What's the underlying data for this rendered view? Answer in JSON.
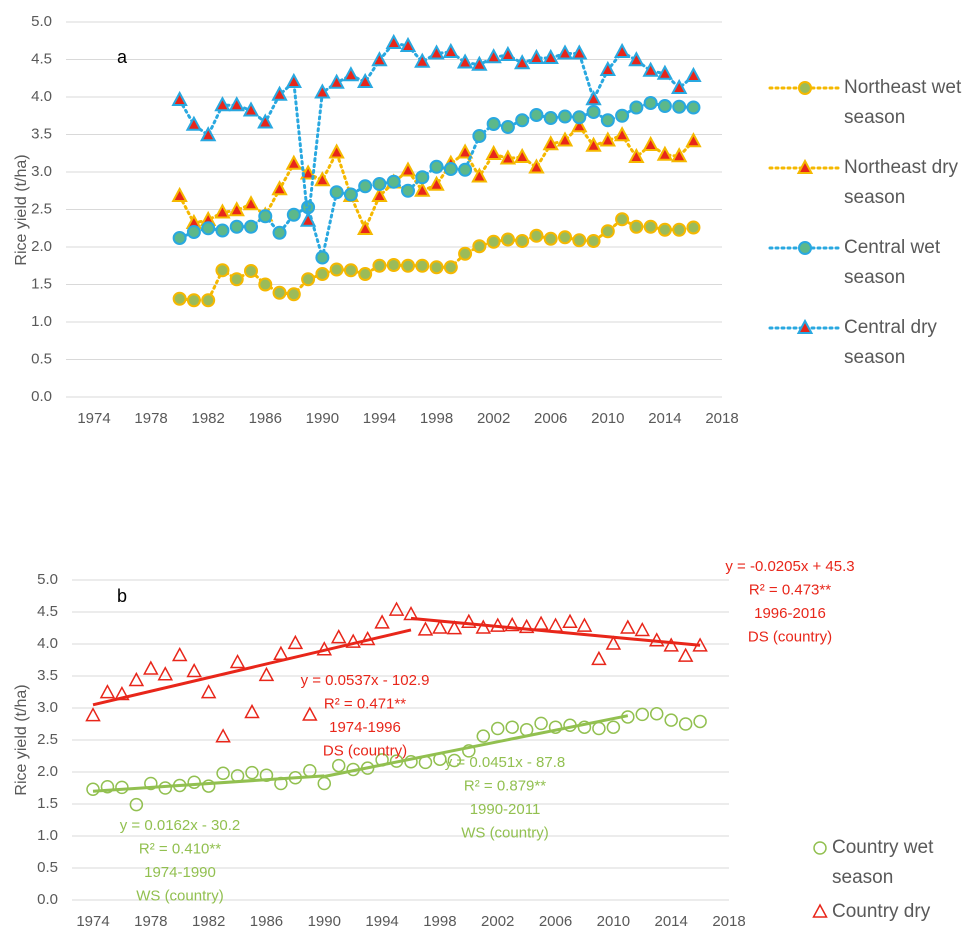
{
  "chart_data": [
    {
      "type": "line",
      "label": "a",
      "y_label": "Rice yield (t/ha)",
      "x": [
        1980,
        1981,
        1982,
        1983,
        1984,
        1985,
        1986,
        1987,
        1988,
        1989,
        1990,
        1991,
        1992,
        1993,
        1994,
        1995,
        1996,
        1997,
        1998,
        1999,
        2000,
        2001,
        2002,
        2003,
        2004,
        2005,
        2006,
        2007,
        2008,
        2009,
        2010,
        2011,
        2012,
        2013,
        2014,
        2015,
        2016
      ],
      "xlim": [
        1974,
        2018
      ],
      "xticks": [
        1974,
        1978,
        1982,
        1986,
        1990,
        1994,
        1998,
        2002,
        2006,
        2010,
        2014,
        2018
      ],
      "ylim": [
        0,
        5
      ],
      "yticks": [
        {
          "value": 0,
          "label": "0.0"
        },
        0.5,
        {
          "value": 1,
          "label": "1.0"
        },
        1.5,
        {
          "value": 2,
          "label": "2.0"
        },
        2.5,
        {
          "value": 3,
          "label": "3.0"
        },
        3.5,
        {
          "value": 4,
          "label": "4.0"
        },
        4.5,
        {
          "value": 5,
          "label": "5.0"
        }
      ],
      "grid": true,
      "legend": "right",
      "series": [
        {
          "name": "Northeast wet season",
          "color": "#f5b800",
          "marker": "circle",
          "marker_color": "#9bbb59",
          "values": [
            1.31,
            1.29,
            1.29,
            1.69,
            1.57,
            1.68,
            1.5,
            1.39,
            1.37,
            1.57,
            1.64,
            1.7,
            1.69,
            1.64,
            1.75,
            1.76,
            1.75,
            1.75,
            1.73,
            1.73,
            1.91,
            2.01,
            2.07,
            2.1,
            2.08,
            2.15,
            2.11,
            2.13,
            2.09,
            2.08,
            2.21,
            2.37,
            2.27,
            2.27,
            2.23,
            2.23,
            2.26
          ]
        },
        {
          "name": "Northeast dry season",
          "color": "#f5b800",
          "marker": "triangle",
          "marker_color": "#e8261a",
          "values": [
            2.68,
            2.32,
            2.36,
            2.46,
            2.49,
            2.57,
            2.42,
            2.77,
            3.11,
            2.98,
            2.89,
            3.26,
            2.68,
            2.24,
            2.68,
            2.86,
            3.02,
            2.75,
            2.83,
            3.11,
            3.26,
            2.94,
            3.24,
            3.18,
            3.2,
            3.06,
            3.37,
            3.42,
            3.61,
            3.35,
            3.42,
            3.49,
            3.2,
            3.36,
            3.23,
            3.21,
            3.41
          ]
        },
        {
          "name": "Central wet season",
          "color": "#29a8e0",
          "marker": "circle",
          "marker_color": "#5cb88a",
          "values": [
            2.12,
            2.2,
            2.25,
            2.22,
            2.27,
            2.27,
            2.41,
            2.19,
            2.43,
            2.53,
            1.86,
            2.73,
            2.7,
            2.81,
            2.84,
            2.87,
            2.75,
            2.93,
            3.07,
            3.04,
            3.03,
            3.48,
            3.64,
            3.6,
            3.69,
            3.76,
            3.72,
            3.74,
            3.73,
            3.8,
            3.69,
            3.75,
            3.86,
            3.92,
            3.88,
            3.87,
            3.86
          ]
        },
        {
          "name": "Central dry season",
          "color": "#29a8e0",
          "marker": "triangle",
          "marker_color": "#e8261a",
          "values": [
            3.96,
            3.63,
            3.49,
            3.89,
            3.89,
            3.82,
            3.66,
            4.03,
            4.2,
            2.35,
            4.06,
            4.19,
            4.29,
            4.2,
            4.49,
            4.72,
            4.68,
            4.47,
            4.58,
            4.6,
            4.46,
            4.43,
            4.53,
            4.56,
            4.45,
            4.52,
            4.52,
            4.58,
            4.58,
            3.97,
            4.36,
            4.6,
            4.49,
            4.35,
            4.31,
            4.12,
            4.28
          ]
        }
      ]
    },
    {
      "type": "scatter",
      "label": "b",
      "y_label": "Rice yield (t/ha)",
      "x": [
        1974,
        1975,
        1976,
        1977,
        1978,
        1979,
        1980,
        1981,
        1982,
        1983,
        1984,
        1985,
        1986,
        1987,
        1988,
        1989,
        1990,
        1991,
        1992,
        1993,
        1994,
        1995,
        1996,
        1997,
        1998,
        1999,
        2000,
        2001,
        2002,
        2003,
        2004,
        2005,
        2006,
        2007,
        2008,
        2009,
        2010,
        2011,
        2012,
        2013,
        2014,
        2015,
        2016
      ],
      "xlim": [
        1974,
        2018
      ],
      "xticks": [
        1974,
        1978,
        1982,
        1986,
        1990,
        1994,
        1998,
        2002,
        2006,
        2010,
        2014,
        2018
      ],
      "ylim": [
        0,
        5
      ],
      "yticks": [
        {
          "value": 0,
          "label": "0.0"
        },
        0.5,
        {
          "value": 1,
          "label": "1.0"
        },
        1.5,
        {
          "value": 2,
          "label": "2.0"
        },
        2.5,
        {
          "value": 3,
          "label": "3.0"
        },
        3.5,
        {
          "value": 4,
          "label": "4.0"
        },
        4.5,
        {
          "value": 5,
          "label": "5.0"
        }
      ],
      "grid": true,
      "legend": "right",
      "series": [
        {
          "name": "Country wet season",
          "color": "#92c050",
          "marker": "circle",
          "values": [
            1.73,
            1.77,
            1.76,
            1.49,
            1.82,
            1.75,
            1.79,
            1.84,
            1.78,
            1.98,
            1.94,
            1.99,
            1.95,
            1.82,
            1.91,
            2.02,
            1.82,
            2.1,
            2.04,
            2.06,
            2.19,
            2.17,
            2.16,
            2.15,
            2.2,
            2.18,
            2.33,
            2.56,
            2.68,
            2.7,
            2.66,
            2.76,
            2.7,
            2.73,
            2.7,
            2.68,
            2.7,
            2.86,
            2.9,
            2.91,
            2.81,
            2.75,
            2.79
          ]
        },
        {
          "name": "Country dry season",
          "color": "#e8261a",
          "marker": "triangle",
          "values": [
            2.88,
            3.24,
            3.21,
            3.43,
            3.61,
            3.52,
            3.82,
            3.57,
            3.24,
            2.55,
            3.71,
            2.93,
            3.51,
            3.84,
            4.01,
            2.89,
            3.91,
            4.1,
            4.03,
            4.07,
            4.33,
            4.53,
            4.46,
            4.22,
            4.25,
            4.24,
            4.34,
            4.25,
            4.28,
            4.29,
            4.26,
            4.31,
            4.28,
            4.34,
            4.28,
            3.76,
            4.0,
            4.25,
            4.21,
            4.05,
            3.97,
            3.81,
            3.97
          ]
        }
      ],
      "trendlines": [
        {
          "color": "#e8261a",
          "x": [
            1974,
            1996
          ],
          "values": [
            3.05,
            4.22
          ]
        },
        {
          "color": "#e8261a",
          "x": [
            1996,
            2016
          ],
          "values": [
            4.4,
            3.98
          ]
        },
        {
          "color": "#92c050",
          "x": [
            1974,
            1990
          ],
          "values": [
            1.7,
            1.94
          ]
        },
        {
          "color": "#92c050",
          "x": [
            1990,
            2011
          ],
          "values": [
            1.93,
            2.88
          ]
        }
      ],
      "annotations": [
        {
          "color": "#e8261a",
          "text": [
            "y = -0.0205x + 45.3",
            "R² = 0.473**",
            "1996-2016",
            "DS (country)"
          ]
        },
        {
          "color": "#e8261a",
          "text": [
            "y = 0.0537x - 102.9",
            "R² = 0.471**",
            "1974-1996",
            "DS (country)"
          ]
        },
        {
          "color": "#92c050",
          "text": [
            "y = 0.0162x - 30.2",
            "R² = 0.410**",
            "1974-1990",
            "WS (country)"
          ]
        },
        {
          "color": "#92c050",
          "text": [
            "y = 0.0451x - 87.8",
            "R² = 0.879**",
            "1990-2011",
            "WS (country)"
          ]
        }
      ]
    }
  ]
}
